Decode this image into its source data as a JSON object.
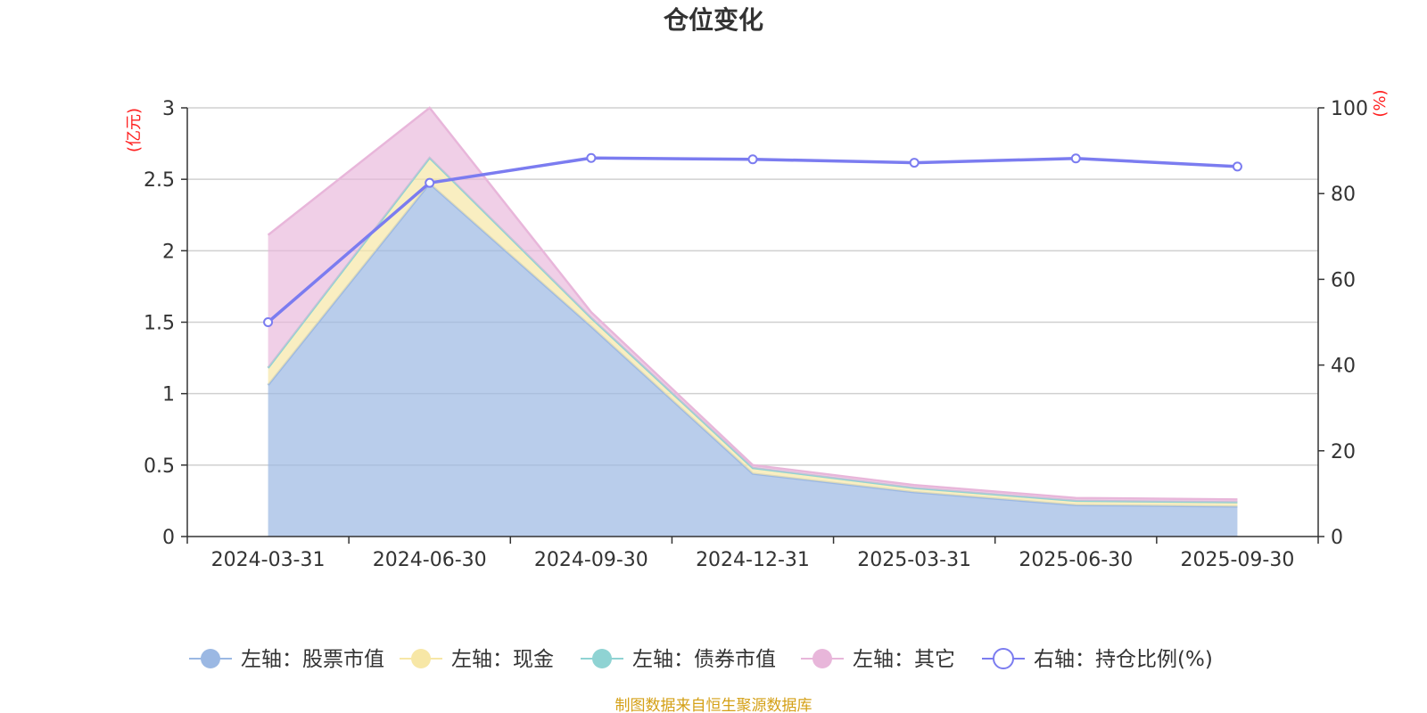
{
  "chart_data": {
    "type": "area",
    "title": "仓位变化",
    "categories": [
      "2024-03-31",
      "2024-06-30",
      "2024-09-30",
      "2024-12-31",
      "2025-03-31",
      "2025-06-30",
      "2025-09-30"
    ],
    "left_axis": {
      "unit": "(亿元)",
      "ylim": [
        0,
        3
      ],
      "ticks": [
        "0",
        "0.5",
        "1",
        "1.5",
        "2",
        "2.5",
        "3"
      ]
    },
    "right_axis": {
      "unit": "(%)",
      "ylim": [
        0,
        100
      ],
      "ticks": [
        "0",
        "20",
        "40",
        "60",
        "80",
        "100"
      ]
    },
    "stacked_series": [
      {
        "name": "左轴：股票市值",
        "color": "#9bb8e3",
        "values": [
          1.06,
          2.47,
          1.47,
          0.44,
          0.31,
          0.22,
          0.21
        ]
      },
      {
        "name": "左轴：现金",
        "color": "#f7e7a6",
        "values": [
          0.12,
          0.18,
          0.06,
          0.04,
          0.03,
          0.03,
          0.03
        ]
      },
      {
        "name": "左轴：债券市值",
        "color": "#8fd3d3",
        "values": [
          0,
          0,
          0,
          0,
          0,
          0,
          0
        ]
      },
      {
        "name": "左轴：其它",
        "color": "#e8b6da",
        "values": [
          0.93,
          0.35,
          0.04,
          0.02,
          0.02,
          0.02,
          0.02
        ]
      }
    ],
    "line_series": {
      "name": "右轴：持仓比例(%)",
      "color": "#7b7cf0",
      "values": [
        50.0,
        82.5,
        88.3,
        88.0,
        87.2,
        88.2,
        86.3
      ]
    },
    "legend_position": "bottom"
  },
  "footer": {
    "source": "制图数据来自恒生聚源数据库"
  }
}
